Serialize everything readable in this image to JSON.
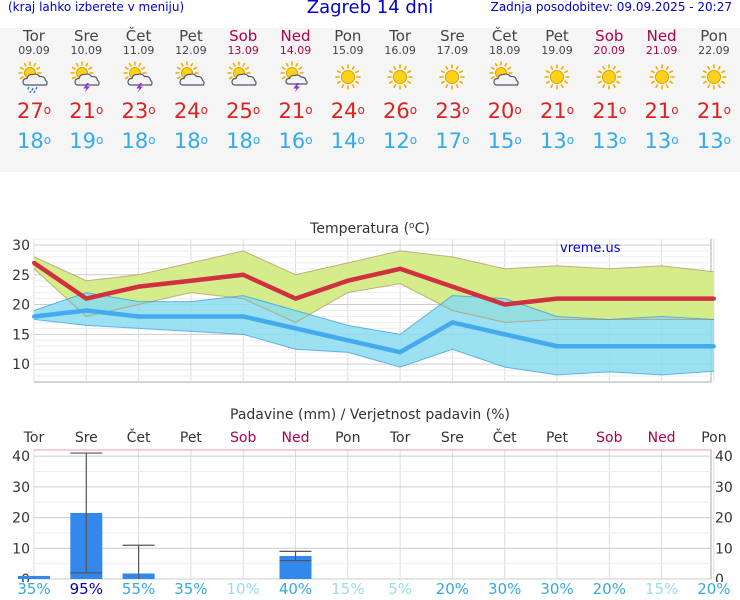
{
  "header": {
    "left_note": "(kraj lahko izberete v meniju)",
    "title": "Zagreb 14 dni",
    "updated": "Zadnja posodobitev: 09.09.2025 - 20:27"
  },
  "colors": {
    "max_line": "#d03040",
    "min_line": "#44aaee",
    "max_band": "#d4ec8a",
    "min_band": "#8adcee",
    "overlap_band": "#88d698",
    "bars": "#3388ee",
    "weekend_text": "#b0004a",
    "prob_high": "#0000bb",
    "prob_mid": "#33aadd",
    "prob_low": "#99ddf0"
  },
  "days": [
    {
      "name": "Tor",
      "date": "09.09",
      "weekend": false,
      "icon": "sun-cloud-rain-icon",
      "max": "27",
      "min": "18"
    },
    {
      "name": "Sre",
      "date": "10.09",
      "weekend": false,
      "icon": "sun-cloud-thunder-icon",
      "max": "21",
      "min": "19"
    },
    {
      "name": "Čet",
      "date": "11.09",
      "weekend": false,
      "icon": "sun-cloud-thunder-icon",
      "max": "23",
      "min": "18"
    },
    {
      "name": "Pet",
      "date": "12.09",
      "weekend": false,
      "icon": "sun-cloud-icon",
      "max": "24",
      "min": "18"
    },
    {
      "name": "Sob",
      "date": "13.09",
      "weekend": true,
      "icon": "sun-cloud-icon",
      "max": "25",
      "min": "18"
    },
    {
      "name": "Ned",
      "date": "14.09",
      "weekend": true,
      "icon": "sun-thunder-icon",
      "max": "21",
      "min": "16"
    },
    {
      "name": "Pon",
      "date": "15.09",
      "weekend": false,
      "icon": "sun-icon",
      "max": "24",
      "min": "14"
    },
    {
      "name": "Tor",
      "date": "16.09",
      "weekend": false,
      "icon": "sun-icon",
      "max": "26",
      "min": "12"
    },
    {
      "name": "Sre",
      "date": "17.09",
      "weekend": false,
      "icon": "sun-icon",
      "max": "23",
      "min": "17"
    },
    {
      "name": "Čet",
      "date": "18.09",
      "weekend": false,
      "icon": "sun-cloud-icon",
      "max": "20",
      "min": "15"
    },
    {
      "name": "Pet",
      "date": "19.09",
      "weekend": false,
      "icon": "sun-icon",
      "max": "21",
      "min": "13"
    },
    {
      "name": "Sob",
      "date": "20.09",
      "weekend": true,
      "icon": "sun-icon",
      "max": "21",
      "min": "13"
    },
    {
      "name": "Ned",
      "date": "21.09",
      "weekend": true,
      "icon": "sun-icon",
      "max": "21",
      "min": "13"
    },
    {
      "name": "Pon",
      "date": "22.09",
      "weekend": false,
      "icon": "sun-icon",
      "max": "21",
      "min": "13"
    }
  ],
  "chart_data": [
    {
      "type": "line",
      "title": "Temperatura (",
      "title_sup": "o",
      "title_end": "C)",
      "watermark": "vreme.us",
      "ylim": [
        7,
        31
      ],
      "yticks": [
        "30",
        "25",
        "20",
        "15",
        "10"
      ],
      "ytick_values": [
        30,
        25,
        20,
        15,
        10
      ],
      "grid": true,
      "x": [
        "09.09",
        "10.09",
        "11.09",
        "12.09",
        "13.09",
        "14.09",
        "15.09",
        "16.09",
        "17.09",
        "18.09",
        "19.09",
        "20.09",
        "21.09",
        "22.09"
      ],
      "series": [
        {
          "role": "max",
          "values": [
            27,
            21,
            23,
            24,
            25,
            21,
            24,
            26,
            23,
            20,
            21,
            21,
            21,
            21
          ]
        },
        {
          "role": "min",
          "values": [
            18,
            19,
            18,
            18,
            18,
            16,
            14,
            12,
            17,
            15,
            13,
            13,
            13,
            13
          ]
        }
      ],
      "max_band_upper": [
        28,
        24,
        25,
        27,
        29,
        25,
        27,
        29,
        28,
        26,
        26.5,
        26,
        26.5,
        25.5
      ],
      "max_band_lower": [
        26,
        18,
        20,
        22,
        21,
        17,
        22,
        23.5,
        19,
        17,
        17.5,
        17.5,
        17.5,
        17.5
      ],
      "min_band_upper": [
        19,
        22,
        20.5,
        20.5,
        21.5,
        19,
        16.5,
        15,
        21.5,
        21,
        18,
        17.5,
        18,
        17.5
      ],
      "min_band_lower": [
        17.5,
        16.5,
        16,
        15.5,
        15,
        12.5,
        12,
        9.5,
        12.5,
        9.5,
        8.2,
        8.7,
        8.2,
        8.8
      ]
    },
    {
      "type": "bar",
      "title": "Padavine (mm) / Verjetnost padavin (%)",
      "day_labels": [
        "Tor",
        "Sre",
        "Čet",
        "Pet",
        "Sob",
        "Ned",
        "Pon",
        "Tor",
        "Sre",
        "Čet",
        "Pet",
        "Sob",
        "Ned",
        "Pon"
      ],
      "weekend": [
        false,
        false,
        false,
        false,
        true,
        true,
        false,
        false,
        false,
        false,
        false,
        true,
        true,
        false
      ],
      "ylim": [
        0,
        42
      ],
      "yticks": [
        "40",
        "30",
        "20",
        "10",
        "0"
      ],
      "ytick_values": [
        40,
        30,
        20,
        10,
        0
      ],
      "values": [
        1,
        21.5,
        1.8,
        0,
        0,
        7.5,
        0,
        0,
        0,
        0,
        0,
        0,
        0,
        0
      ],
      "range_low": [
        null,
        2,
        null,
        null,
        null,
        6,
        null,
        null,
        null,
        null,
        null,
        null,
        null,
        null
      ],
      "range_high": [
        null,
        41,
        11,
        null,
        null,
        9,
        null,
        null,
        null,
        null,
        null,
        null,
        null,
        null
      ],
      "probability": [
        "35%",
        "95%",
        "55%",
        "35%",
        "10%",
        "40%",
        "15%",
        "5%",
        "20%",
        "30%",
        "30%",
        "20%",
        "15%",
        "20%"
      ],
      "probability_values": [
        35,
        95,
        55,
        35,
        10,
        40,
        15,
        5,
        20,
        30,
        30,
        20,
        15,
        20
      ]
    }
  ]
}
